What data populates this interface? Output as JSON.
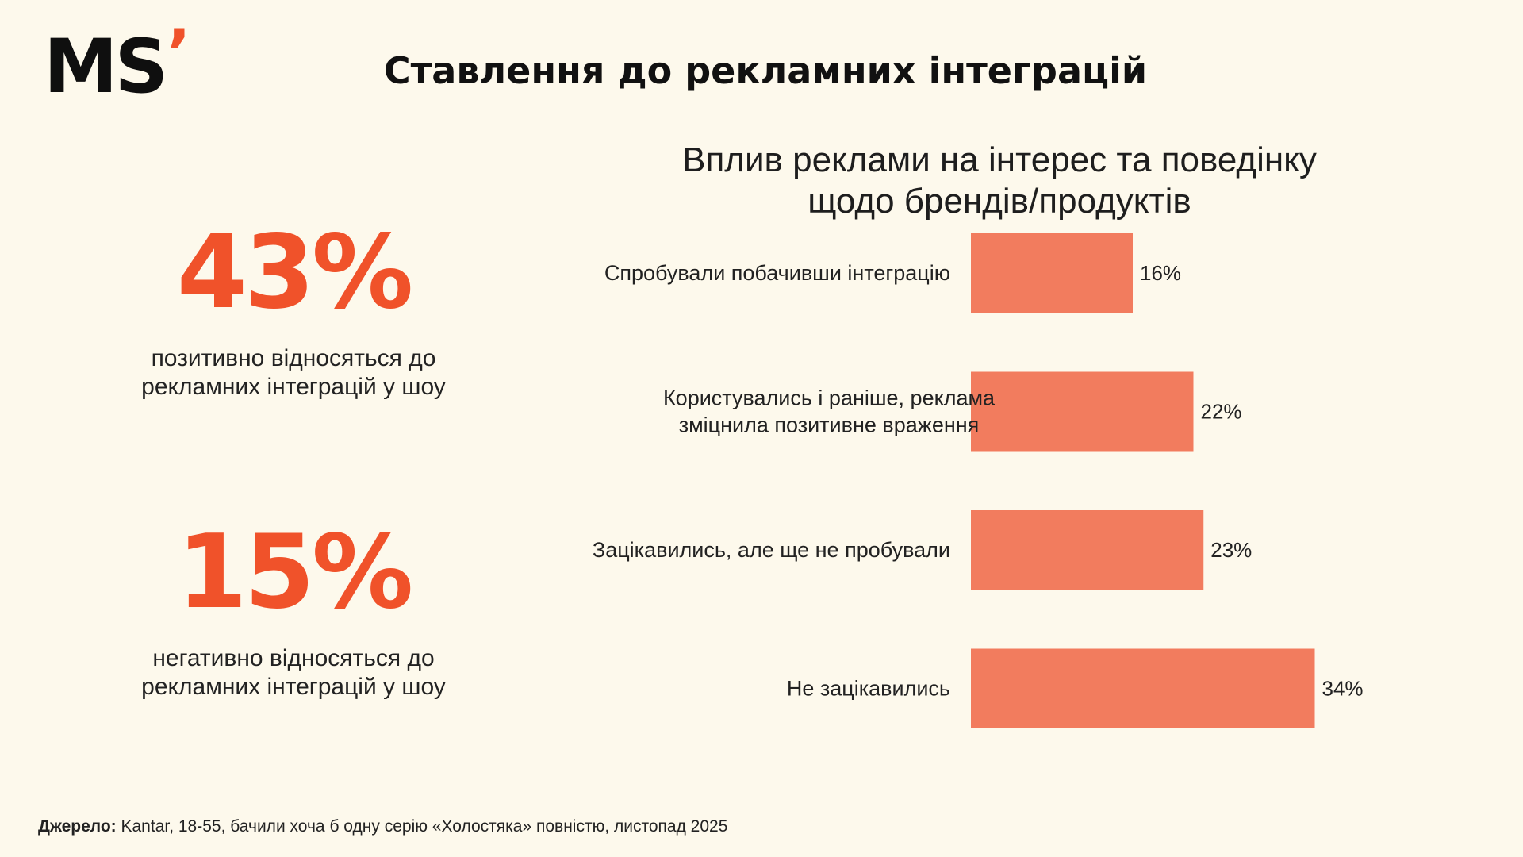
{
  "brand": {
    "logo_text": "MS",
    "logo_mark": "’"
  },
  "header": {
    "title": "Ставлення до рекламних інтеграцій"
  },
  "stats": [
    {
      "value": "43%",
      "caption_line1": "позитивно відносяться до",
      "caption_line2": "рекламних інтеграцій у шоу"
    },
    {
      "value": "15%",
      "caption_line1": "негативно відносяться до",
      "caption_line2": "рекламних інтеграцій у шоу"
    }
  ],
  "chart_data": {
    "type": "bar",
    "orientation": "horizontal",
    "title_line1": "Вплив реклами на інтерес та поведінку",
    "title_line2": "щодо брендів/продуктів",
    "categories": [
      [
        "Спробували побачивши інтеграцію"
      ],
      [
        "Користувались і раніше, реклама",
        "зміцнила позитивне враження"
      ],
      [
        "Зацікавились, але ще не пробували"
      ],
      [
        "Не зацікавились"
      ]
    ],
    "values": [
      16,
      22,
      23,
      34
    ],
    "value_labels": [
      "16%",
      "22%",
      "23%",
      "34%"
    ],
    "bar_color": "#f27c5e",
    "xlim": [
      0,
      40
    ],
    "grid": false,
    "legend": "none"
  },
  "footer": {
    "source_label": "Джерело:",
    "source_text": " Kantar, 18-55, бачили хоча б одну серію «Холостяка» повністю, листопад 2025"
  },
  "colors": {
    "background": "#fdf9ec",
    "accent": "#f0522a",
    "bar": "#f27c5e"
  }
}
